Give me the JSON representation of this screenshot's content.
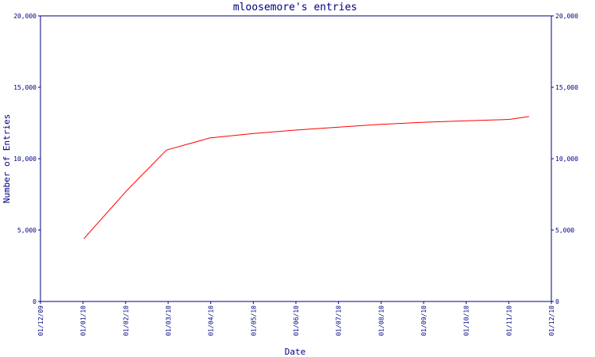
{
  "chart_data": {
    "type": "line",
    "title": "mloosemore's entries",
    "xlabel": "Date",
    "ylabel": "Number of Entries",
    "ylim": [
      0,
      20000
    ],
    "y_ticks": [
      0,
      5000,
      10000,
      15000,
      20000
    ],
    "y_tick_labels": [
      "0",
      "5,000",
      "10,000",
      "15,000",
      "20,000"
    ],
    "x_range": [
      "2009-12-01",
      "2010-12-01"
    ],
    "x_tick_labels": [
      "01/12/09",
      "01/01/10",
      "01/02/10",
      "01/03/10",
      "01/04/10",
      "01/05/10",
      "01/06/10",
      "01/07/10",
      "01/08/10",
      "01/09/10",
      "01/10/10",
      "01/11/10",
      "01/12/10"
    ],
    "grid": false,
    "series": [
      {
        "color": "#ff0000",
        "x": [
          "2010-01-01",
          "2010-02-01",
          "2010-03-01",
          "2010-04-01",
          "2010-05-01",
          "2010-06-01",
          "2010-07-01",
          "2010-08-01",
          "2010-09-01",
          "2010-10-01",
          "2010-11-01",
          "2010-11-15"
        ],
        "y": [
          4400,
          7800,
          10600,
          11450,
          11750,
          12000,
          12200,
          12400,
          12550,
          12650,
          12750,
          12950
        ]
      }
    ]
  }
}
